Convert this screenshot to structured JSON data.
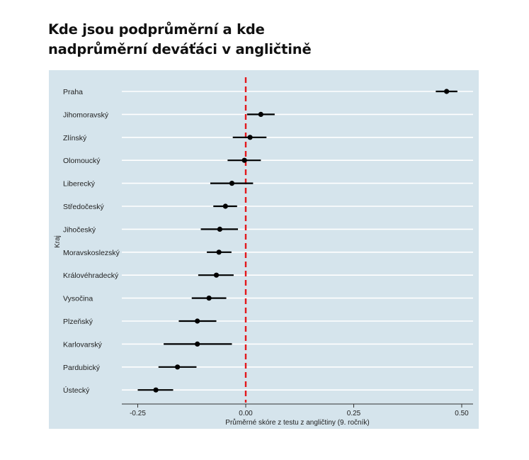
{
  "title_lines": [
    "Kde jsou podprůměrní a kde",
    "nadprůměrní deváťáci v angličtině"
  ],
  "colors": {
    "panel_background": "#d5e4ec",
    "gridline": "#ffffff",
    "point": "#000000",
    "reference_line": "#e3171b"
  },
  "chart_data": {
    "type": "scatter",
    "subtype": "point-range (dot with horizontal error bars)",
    "title": "Kde jsou podprůměrní a kde nadprůměrní deváťáci v angličtině",
    "xlabel": "Průměrné skóre z testu z angličtiny (9. ročník)",
    "ylabel": "Kraj",
    "xlim": [
      -0.28,
      0.53
    ],
    "x_ticks": [
      -0.25,
      0.0,
      0.25,
      0.5
    ],
    "x_tick_labels": [
      "-0.25",
      "0.00",
      "0.25",
      "0.50"
    ],
    "reference_line": {
      "x": 0.0,
      "style": "dashed",
      "color": "#e3171b"
    },
    "grid": "horizontal major gridlines",
    "legend": "none",
    "categories": [
      "Praha",
      "Jihomoravský",
      "Zlínský",
      "Olomoucký",
      "Liberecký",
      "Středočeský",
      "Jihočeský",
      "Moravskoslezský",
      "Královéhradecký",
      "Vysočina",
      "Plzeňský",
      "Karlovarský",
      "Pardubický",
      "Ústecký"
    ],
    "points": [
      {
        "category": "Praha",
        "estimate": 0.465,
        "low": 0.44,
        "high": 0.49
      },
      {
        "category": "Jihomoravský",
        "estimate": 0.035,
        "low": 0.003,
        "high": 0.067
      },
      {
        "category": "Zlínský",
        "estimate": 0.01,
        "low": -0.03,
        "high": 0.048
      },
      {
        "category": "Olomoucký",
        "estimate": -0.003,
        "low": -0.042,
        "high": 0.035
      },
      {
        "category": "Liberecký",
        "estimate": -0.032,
        "low": -0.082,
        "high": 0.017
      },
      {
        "category": "Středočeský",
        "estimate": -0.047,
        "low": -0.075,
        "high": -0.02
      },
      {
        "category": "Jihočeský",
        "estimate": -0.06,
        "low": -0.104,
        "high": -0.018
      },
      {
        "category": "Moravskoslezský",
        "estimate": -0.062,
        "low": -0.09,
        "high": -0.033
      },
      {
        "category": "Královéhradecký",
        "estimate": -0.068,
        "low": -0.11,
        "high": -0.028
      },
      {
        "category": "Vysočina",
        "estimate": -0.085,
        "low": -0.125,
        "high": -0.045
      },
      {
        "category": "Plzeňský",
        "estimate": -0.112,
        "low": -0.155,
        "high": -0.068
      },
      {
        "category": "Karlovarský",
        "estimate": -0.112,
        "low": -0.19,
        "high": -0.032
      },
      {
        "category": "Pardubický",
        "estimate": -0.158,
        "low": -0.202,
        "high": -0.114
      },
      {
        "category": "Ústecký",
        "estimate": -0.208,
        "low": -0.25,
        "high": -0.168
      }
    ]
  }
}
